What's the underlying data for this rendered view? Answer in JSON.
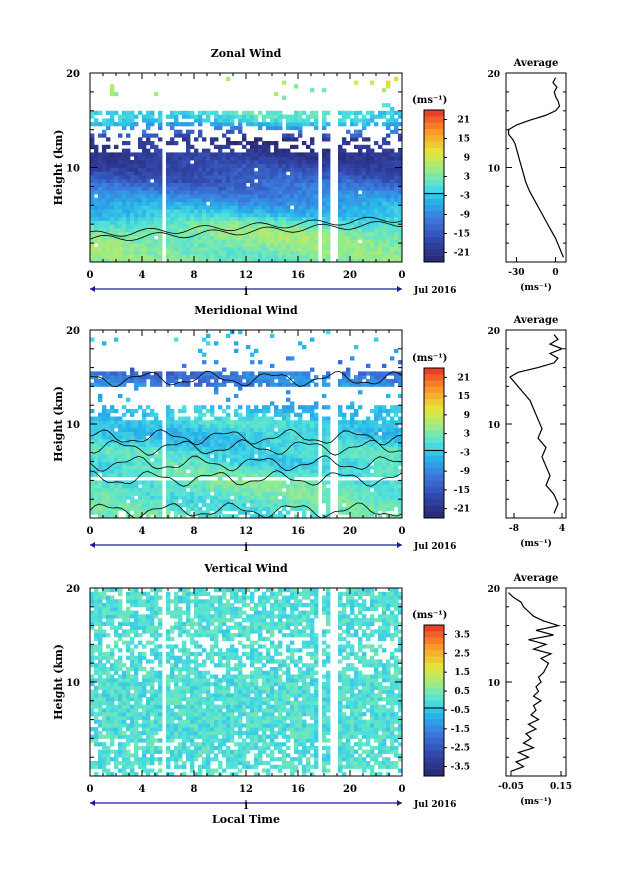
{
  "chart_data": [
    {
      "type": "heatmap",
      "title": "Zonal Wind",
      "ylabel": "Height (km)",
      "ylim": [
        0,
        20
      ],
      "xlim": [
        0,
        24
      ],
      "xticks": [
        "0",
        "4",
        "8",
        "12",
        "16",
        "20",
        "0"
      ],
      "yticks": [
        "20",
        "10"
      ],
      "date_marker": "1",
      "date_label": "Jul 2016",
      "colorbar_unit": "(ms⁻¹)",
      "colorbar_ticks": [
        "21",
        "15",
        "9",
        "3",
        "-3",
        "-9",
        "-15",
        "-21"
      ],
      "colorbar_range": [
        -24,
        24
      ],
      "data_gaps_hours": [
        [
          5.6,
          6.0
        ],
        [
          17.6,
          18.0
        ],
        [
          18.6,
          19.0
        ]
      ],
      "wind_profile_by_height": {
        "height_km": [
          1,
          2,
          3,
          4,
          5,
          6,
          7,
          8,
          9,
          10,
          11,
          12,
          13,
          14,
          15,
          16,
          17,
          18,
          19
        ],
        "value_ms": [
          3,
          4,
          4,
          2,
          -3,
          -6,
          -9,
          -12,
          -15,
          -17,
          -19,
          -20,
          -21,
          -10,
          -2,
          0,
          4,
          6,
          8
        ]
      },
      "average_panel": {
        "title": "Average",
        "xticks": [
          "-30",
          "0"
        ],
        "xlabel": "(ms⁻¹)",
        "yticks": [
          "20",
          "10"
        ],
        "xlim": [
          -38,
          8
        ],
        "height_km": [
          0.5,
          1.5,
          2.5,
          3.5,
          4.5,
          5.5,
          6.5,
          7.5,
          8.5,
          9.5,
          10.5,
          11.5,
          12.5,
          13.0,
          13.5,
          14.0,
          14.5,
          15.0,
          15.5,
          16.0,
          16.5,
          17.0,
          17.5,
          18.0,
          18.5,
          19.0,
          19.5
        ],
        "values": [
          6,
          3,
          0,
          -4,
          -8,
          -12,
          -16,
          -20,
          -23,
          -25,
          -27,
          -29,
          -31,
          -33,
          -36,
          -36,
          -30,
          -20,
          -8,
          0,
          3,
          2,
          0,
          -1,
          1,
          -2,
          0
        ]
      }
    },
    {
      "type": "heatmap",
      "title": "Meridional Wind",
      "ylabel": "Height (km)",
      "ylim": [
        0,
        20
      ],
      "xlim": [
        0,
        24
      ],
      "xticks": [
        "0",
        "4",
        "8",
        "12",
        "16",
        "20",
        "0"
      ],
      "yticks": [
        "20",
        "10"
      ],
      "date_marker": "1",
      "date_label": "Jul 2016",
      "colorbar_unit": "(ms⁻¹)",
      "colorbar_ticks": [
        "21",
        "15",
        "9",
        "3",
        "-3",
        "-9",
        "-15",
        "-21"
      ],
      "colorbar_range": [
        -24,
        24
      ],
      "data_gaps_hours": [
        [
          5.6,
          6.0
        ],
        [
          17.6,
          18.0
        ],
        [
          18.6,
          19.0
        ]
      ],
      "wind_profile_by_height": {
        "height_km": [
          1,
          2,
          3,
          4,
          5,
          6,
          7,
          8,
          9,
          10,
          11,
          12,
          13,
          14,
          15,
          16,
          17,
          18,
          19
        ],
        "value_ms": [
          1,
          1,
          2,
          2,
          1,
          -1,
          0,
          -2,
          -3,
          -1,
          -3,
          -4,
          -7,
          -9,
          -10,
          -12,
          -8,
          -5,
          -3
        ]
      },
      "average_panel": {
        "title": "Average",
        "xticks": [
          "-8",
          "4"
        ],
        "xlabel": "(ms⁻¹)",
        "yticks": [
          "20",
          "10"
        ],
        "xlim": [
          -10,
          5
        ],
        "height_km": [
          0.5,
          1.5,
          2.5,
          3.5,
          4.5,
          5.5,
          6.5,
          7.5,
          8.5,
          9.5,
          10.5,
          11.5,
          12.5,
          13.5,
          14.5,
          15.0,
          15.5,
          16.0,
          16.5,
          17.0,
          17.5,
          18.0,
          18.5,
          19.0,
          19.5
        ],
        "values": [
          2,
          3,
          2,
          0,
          1,
          0,
          -1,
          0,
          -2,
          -1,
          -2,
          -3,
          -4,
          -6,
          -8,
          -9,
          -7,
          -2,
          2,
          3,
          1,
          4,
          1,
          3,
          2
        ]
      }
    },
    {
      "type": "heatmap",
      "title": "Vertical Wind",
      "ylabel": "Height (km)",
      "xlabel": "Local Time",
      "ylim": [
        0,
        20
      ],
      "xlim": [
        0,
        24
      ],
      "xticks": [
        "0",
        "4",
        "8",
        "12",
        "16",
        "20",
        "0"
      ],
      "yticks": [
        "20",
        "10"
      ],
      "date_marker": "1",
      "date_label": "Jul 2016",
      "colorbar_unit": "(ms⁻¹)",
      "colorbar_ticks": [
        "3.5",
        "2.5",
        "1.5",
        "0.5",
        "-0.5",
        "-1.5",
        "-2.5",
        "-3.5"
      ],
      "colorbar_range": [
        -4,
        4
      ],
      "data_gaps_hours": [
        [
          5.6,
          6.0
        ],
        [
          17.6,
          18.0
        ],
        [
          18.6,
          19.0
        ]
      ],
      "typical_value_ms": 0.0,
      "average_panel": {
        "title": "Average",
        "xticks": [
          "-0.05",
          "0.15"
        ],
        "xlabel": "(ms⁻¹)",
        "yticks": [
          "20",
          "10"
        ],
        "xlim": [
          -0.07,
          0.17
        ],
        "height_km": [
          0.5,
          1.0,
          1.5,
          2.0,
          2.5,
          3.0,
          3.5,
          4.0,
          4.5,
          5.0,
          5.5,
          6.0,
          6.5,
          7.0,
          7.5,
          8.0,
          8.5,
          9.0,
          9.5,
          10.0,
          10.5,
          11.0,
          11.5,
          12.0,
          12.5,
          13.0,
          13.5,
          14.0,
          14.5,
          15.0,
          15.5,
          16.0,
          16.5,
          17.0,
          17.5,
          18.0,
          18.5,
          19.0,
          19.5
        ],
        "values": [
          -0.05,
          0.0,
          -0.03,
          0.02,
          -0.02,
          0.04,
          0.0,
          0.03,
          0.01,
          0.05,
          0.02,
          0.06,
          0.03,
          0.05,
          0.04,
          0.07,
          0.04,
          0.06,
          0.05,
          0.07,
          0.06,
          0.08,
          0.09,
          0.1,
          0.07,
          0.11,
          0.04,
          0.09,
          0.02,
          0.12,
          0.05,
          0.14,
          0.08,
          0.04,
          0.02,
          0.0,
          -0.01,
          -0.04,
          -0.06
        ]
      }
    }
  ]
}
